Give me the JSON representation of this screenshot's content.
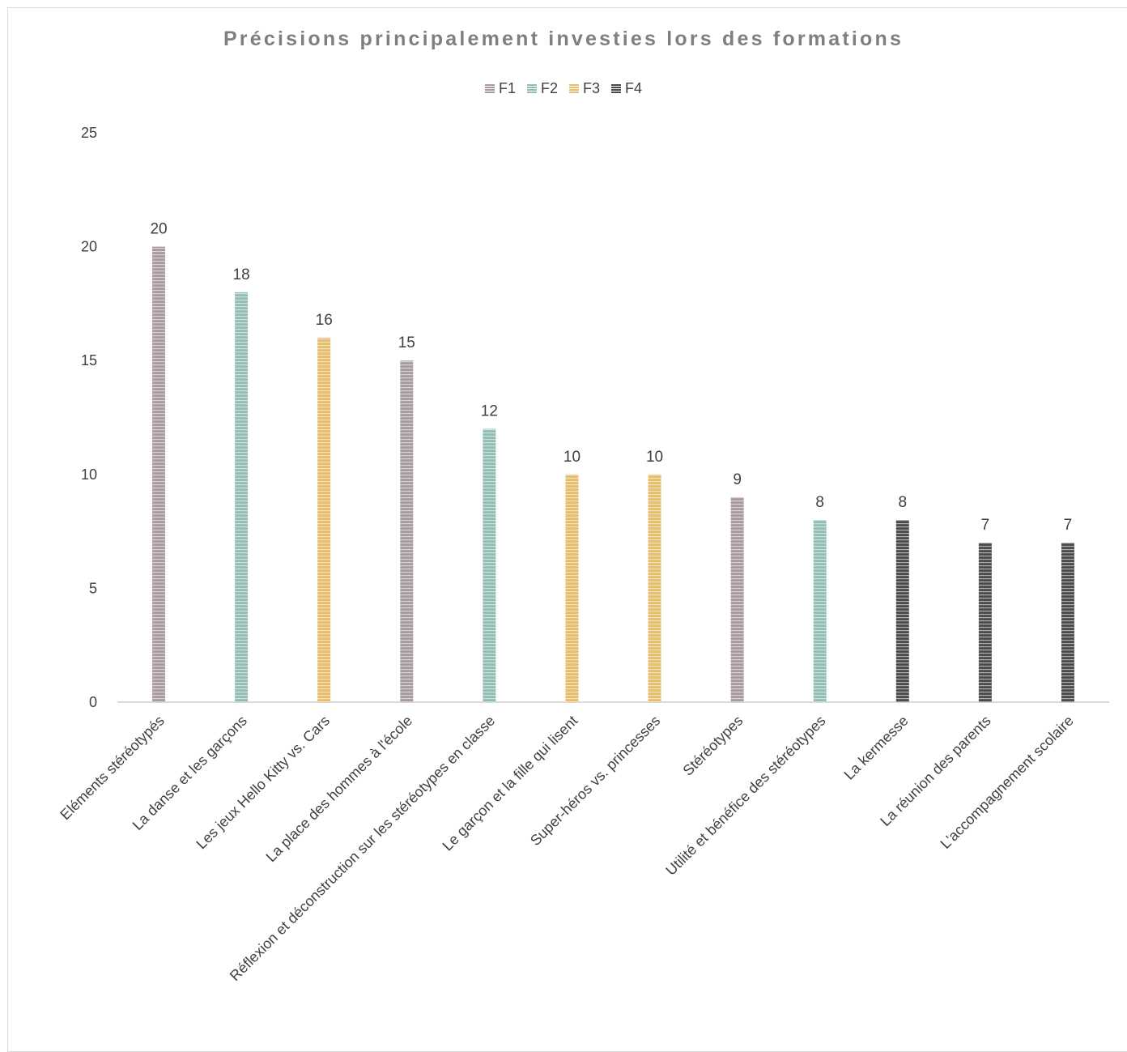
{
  "chart_data": {
    "type": "bar",
    "title": "Précisions principalement investies lors des formations",
    "xlabel": "",
    "ylabel": "",
    "ylim": [
      0,
      25
    ],
    "yticks": [
      "0",
      "5",
      "10",
      "15",
      "20",
      "25"
    ],
    "grid": false,
    "legend_position": "top-center",
    "series": [
      {
        "name": "F1",
        "color": "#a89a9e"
      },
      {
        "name": "F2",
        "color": "#8fbdb4"
      },
      {
        "name": "F3",
        "color": "#e6bd6b"
      },
      {
        "name": "F4",
        "color": "#4d4a4c"
      }
    ],
    "bars": [
      {
        "category": "Eléments stéréotypés",
        "series": "F1",
        "value": 20
      },
      {
        "category": "La danse et les garçons",
        "series": "F2",
        "value": 18
      },
      {
        "category": "Les jeux Hello Kitty vs. Cars",
        "series": "F3",
        "value": 16
      },
      {
        "category": "La place des hommes à l'école",
        "series": "F1",
        "value": 15
      },
      {
        "category": "Réflexion et déconstruction sur les stéréotypes en classe",
        "series": "F2",
        "value": 12
      },
      {
        "category": "Le garçon et la fille qui lisent",
        "series": "F3",
        "value": 10
      },
      {
        "category": "Super-héros vs. princesses",
        "series": "F3",
        "value": 10
      },
      {
        "category": "Stéréotypes",
        "series": "F1",
        "value": 9
      },
      {
        "category": "Utilité et bénéfice des stéréotypes",
        "series": "F2",
        "value": 8
      },
      {
        "category": "La kermesse",
        "series": "F4",
        "value": 8
      },
      {
        "category": "La réunion des parents",
        "series": "F4",
        "value": 7
      },
      {
        "category": "L'accompagnement scolaire",
        "series": "F4",
        "value": 7
      }
    ]
  }
}
